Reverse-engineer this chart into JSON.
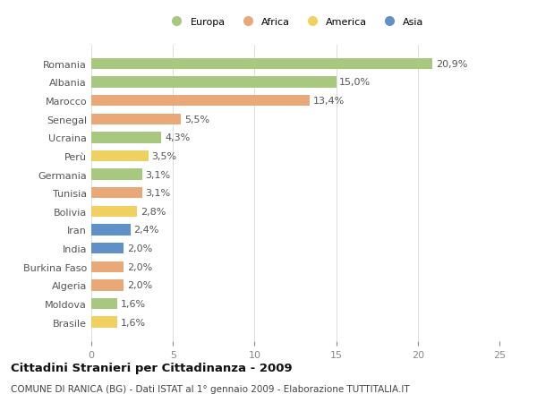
{
  "countries": [
    "Romania",
    "Albania",
    "Marocco",
    "Senegal",
    "Ucraina",
    "Perù",
    "Germania",
    "Tunisia",
    "Bolivia",
    "Iran",
    "India",
    "Burkina Faso",
    "Algeria",
    "Moldova",
    "Brasile"
  ],
  "values": [
    20.9,
    15.0,
    13.4,
    5.5,
    4.3,
    3.5,
    3.1,
    3.1,
    2.8,
    2.4,
    2.0,
    2.0,
    2.0,
    1.6,
    1.6
  ],
  "labels": [
    "20,9%",
    "15,0%",
    "13,4%",
    "5,5%",
    "4,3%",
    "3,5%",
    "3,1%",
    "3,1%",
    "2,8%",
    "2,4%",
    "2,0%",
    "2,0%",
    "2,0%",
    "1,6%",
    "1,6%"
  ],
  "continents": [
    "Europa",
    "Europa",
    "Africa",
    "Africa",
    "Europa",
    "America",
    "Europa",
    "Africa",
    "America",
    "Asia",
    "Asia",
    "Africa",
    "Africa",
    "Europa",
    "America"
  ],
  "colors": {
    "Europa": "#a8c880",
    "Africa": "#e8a878",
    "America": "#f0d060",
    "Asia": "#6090c8"
  },
  "legend_labels": [
    "Europa",
    "Africa",
    "America",
    "Asia"
  ],
  "legend_colors": [
    "#a8c880",
    "#e8a878",
    "#f0d060",
    "#6090c8"
  ],
  "xlim": [
    0,
    25
  ],
  "xticks": [
    0,
    5,
    10,
    15,
    20,
    25
  ],
  "title": "Cittadini Stranieri per Cittadinanza - 2009",
  "subtitle": "COMUNE DI RANICA (BG) - Dati ISTAT al 1° gennaio 2009 - Elaborazione TUTTITALIA.IT",
  "background_color": "#ffffff",
  "bar_height": 0.6,
  "label_fontsize": 8.0,
  "tick_fontsize": 8.0,
  "title_fontsize": 9.5,
  "subtitle_fontsize": 7.5
}
